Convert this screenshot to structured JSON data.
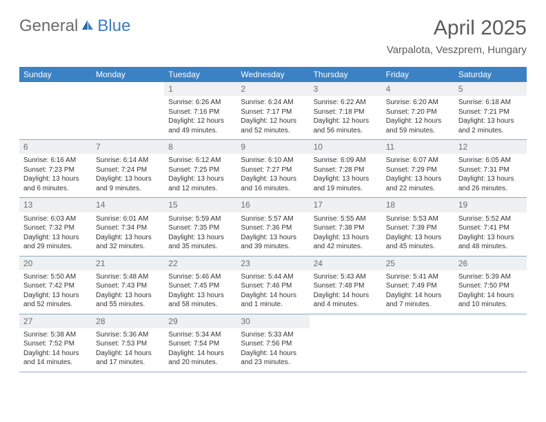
{
  "brand": {
    "part1": "General",
    "part2": "Blue"
  },
  "title": "April 2025",
  "location": "Varpalota, Veszprem, Hungary",
  "colors": {
    "header_bg": "#3b82c4",
    "header_text": "#ffffff",
    "daynum_bg": "#eef0f1",
    "border": "#8aa8c4",
    "brand_gray": "#6b6b6b",
    "brand_blue": "#3b7bbf"
  },
  "dow": [
    "Sunday",
    "Monday",
    "Tuesday",
    "Wednesday",
    "Thursday",
    "Friday",
    "Saturday"
  ],
  "cells": [
    {
      "empty": true
    },
    {
      "empty": true
    },
    {
      "n": "1",
      "sr": "6:26 AM",
      "ss": "7:16 PM",
      "dl": "12 hours and 49 minutes."
    },
    {
      "n": "2",
      "sr": "6:24 AM",
      "ss": "7:17 PM",
      "dl": "12 hours and 52 minutes."
    },
    {
      "n": "3",
      "sr": "6:22 AM",
      "ss": "7:18 PM",
      "dl": "12 hours and 56 minutes."
    },
    {
      "n": "4",
      "sr": "6:20 AM",
      "ss": "7:20 PM",
      "dl": "12 hours and 59 minutes."
    },
    {
      "n": "5",
      "sr": "6:18 AM",
      "ss": "7:21 PM",
      "dl": "13 hours and 2 minutes."
    },
    {
      "n": "6",
      "sr": "6:16 AM",
      "ss": "7:23 PM",
      "dl": "13 hours and 6 minutes."
    },
    {
      "n": "7",
      "sr": "6:14 AM",
      "ss": "7:24 PM",
      "dl": "13 hours and 9 minutes."
    },
    {
      "n": "8",
      "sr": "6:12 AM",
      "ss": "7:25 PM",
      "dl": "13 hours and 12 minutes."
    },
    {
      "n": "9",
      "sr": "6:10 AM",
      "ss": "7:27 PM",
      "dl": "13 hours and 16 minutes."
    },
    {
      "n": "10",
      "sr": "6:09 AM",
      "ss": "7:28 PM",
      "dl": "13 hours and 19 minutes."
    },
    {
      "n": "11",
      "sr": "6:07 AM",
      "ss": "7:29 PM",
      "dl": "13 hours and 22 minutes."
    },
    {
      "n": "12",
      "sr": "6:05 AM",
      "ss": "7:31 PM",
      "dl": "13 hours and 26 minutes."
    },
    {
      "n": "13",
      "sr": "6:03 AM",
      "ss": "7:32 PM",
      "dl": "13 hours and 29 minutes."
    },
    {
      "n": "14",
      "sr": "6:01 AM",
      "ss": "7:34 PM",
      "dl": "13 hours and 32 minutes."
    },
    {
      "n": "15",
      "sr": "5:59 AM",
      "ss": "7:35 PM",
      "dl": "13 hours and 35 minutes."
    },
    {
      "n": "16",
      "sr": "5:57 AM",
      "ss": "7:36 PM",
      "dl": "13 hours and 39 minutes."
    },
    {
      "n": "17",
      "sr": "5:55 AM",
      "ss": "7:38 PM",
      "dl": "13 hours and 42 minutes."
    },
    {
      "n": "18",
      "sr": "5:53 AM",
      "ss": "7:39 PM",
      "dl": "13 hours and 45 minutes."
    },
    {
      "n": "19",
      "sr": "5:52 AM",
      "ss": "7:41 PM",
      "dl": "13 hours and 48 minutes."
    },
    {
      "n": "20",
      "sr": "5:50 AM",
      "ss": "7:42 PM",
      "dl": "13 hours and 52 minutes."
    },
    {
      "n": "21",
      "sr": "5:48 AM",
      "ss": "7:43 PM",
      "dl": "13 hours and 55 minutes."
    },
    {
      "n": "22",
      "sr": "5:46 AM",
      "ss": "7:45 PM",
      "dl": "13 hours and 58 minutes."
    },
    {
      "n": "23",
      "sr": "5:44 AM",
      "ss": "7:46 PM",
      "dl": "14 hours and 1 minute."
    },
    {
      "n": "24",
      "sr": "5:43 AM",
      "ss": "7:48 PM",
      "dl": "14 hours and 4 minutes."
    },
    {
      "n": "25",
      "sr": "5:41 AM",
      "ss": "7:49 PM",
      "dl": "14 hours and 7 minutes."
    },
    {
      "n": "26",
      "sr": "5:39 AM",
      "ss": "7:50 PM",
      "dl": "14 hours and 10 minutes."
    },
    {
      "n": "27",
      "sr": "5:38 AM",
      "ss": "7:52 PM",
      "dl": "14 hours and 14 minutes."
    },
    {
      "n": "28",
      "sr": "5:36 AM",
      "ss": "7:53 PM",
      "dl": "14 hours and 17 minutes."
    },
    {
      "n": "29",
      "sr": "5:34 AM",
      "ss": "7:54 PM",
      "dl": "14 hours and 20 minutes."
    },
    {
      "n": "30",
      "sr": "5:33 AM",
      "ss": "7:56 PM",
      "dl": "14 hours and 23 minutes."
    },
    {
      "empty": true
    },
    {
      "empty": true
    },
    {
      "empty": true
    }
  ],
  "labels": {
    "sunrise": "Sunrise: ",
    "sunset": "Sunset: ",
    "daylight": "Daylight: "
  }
}
